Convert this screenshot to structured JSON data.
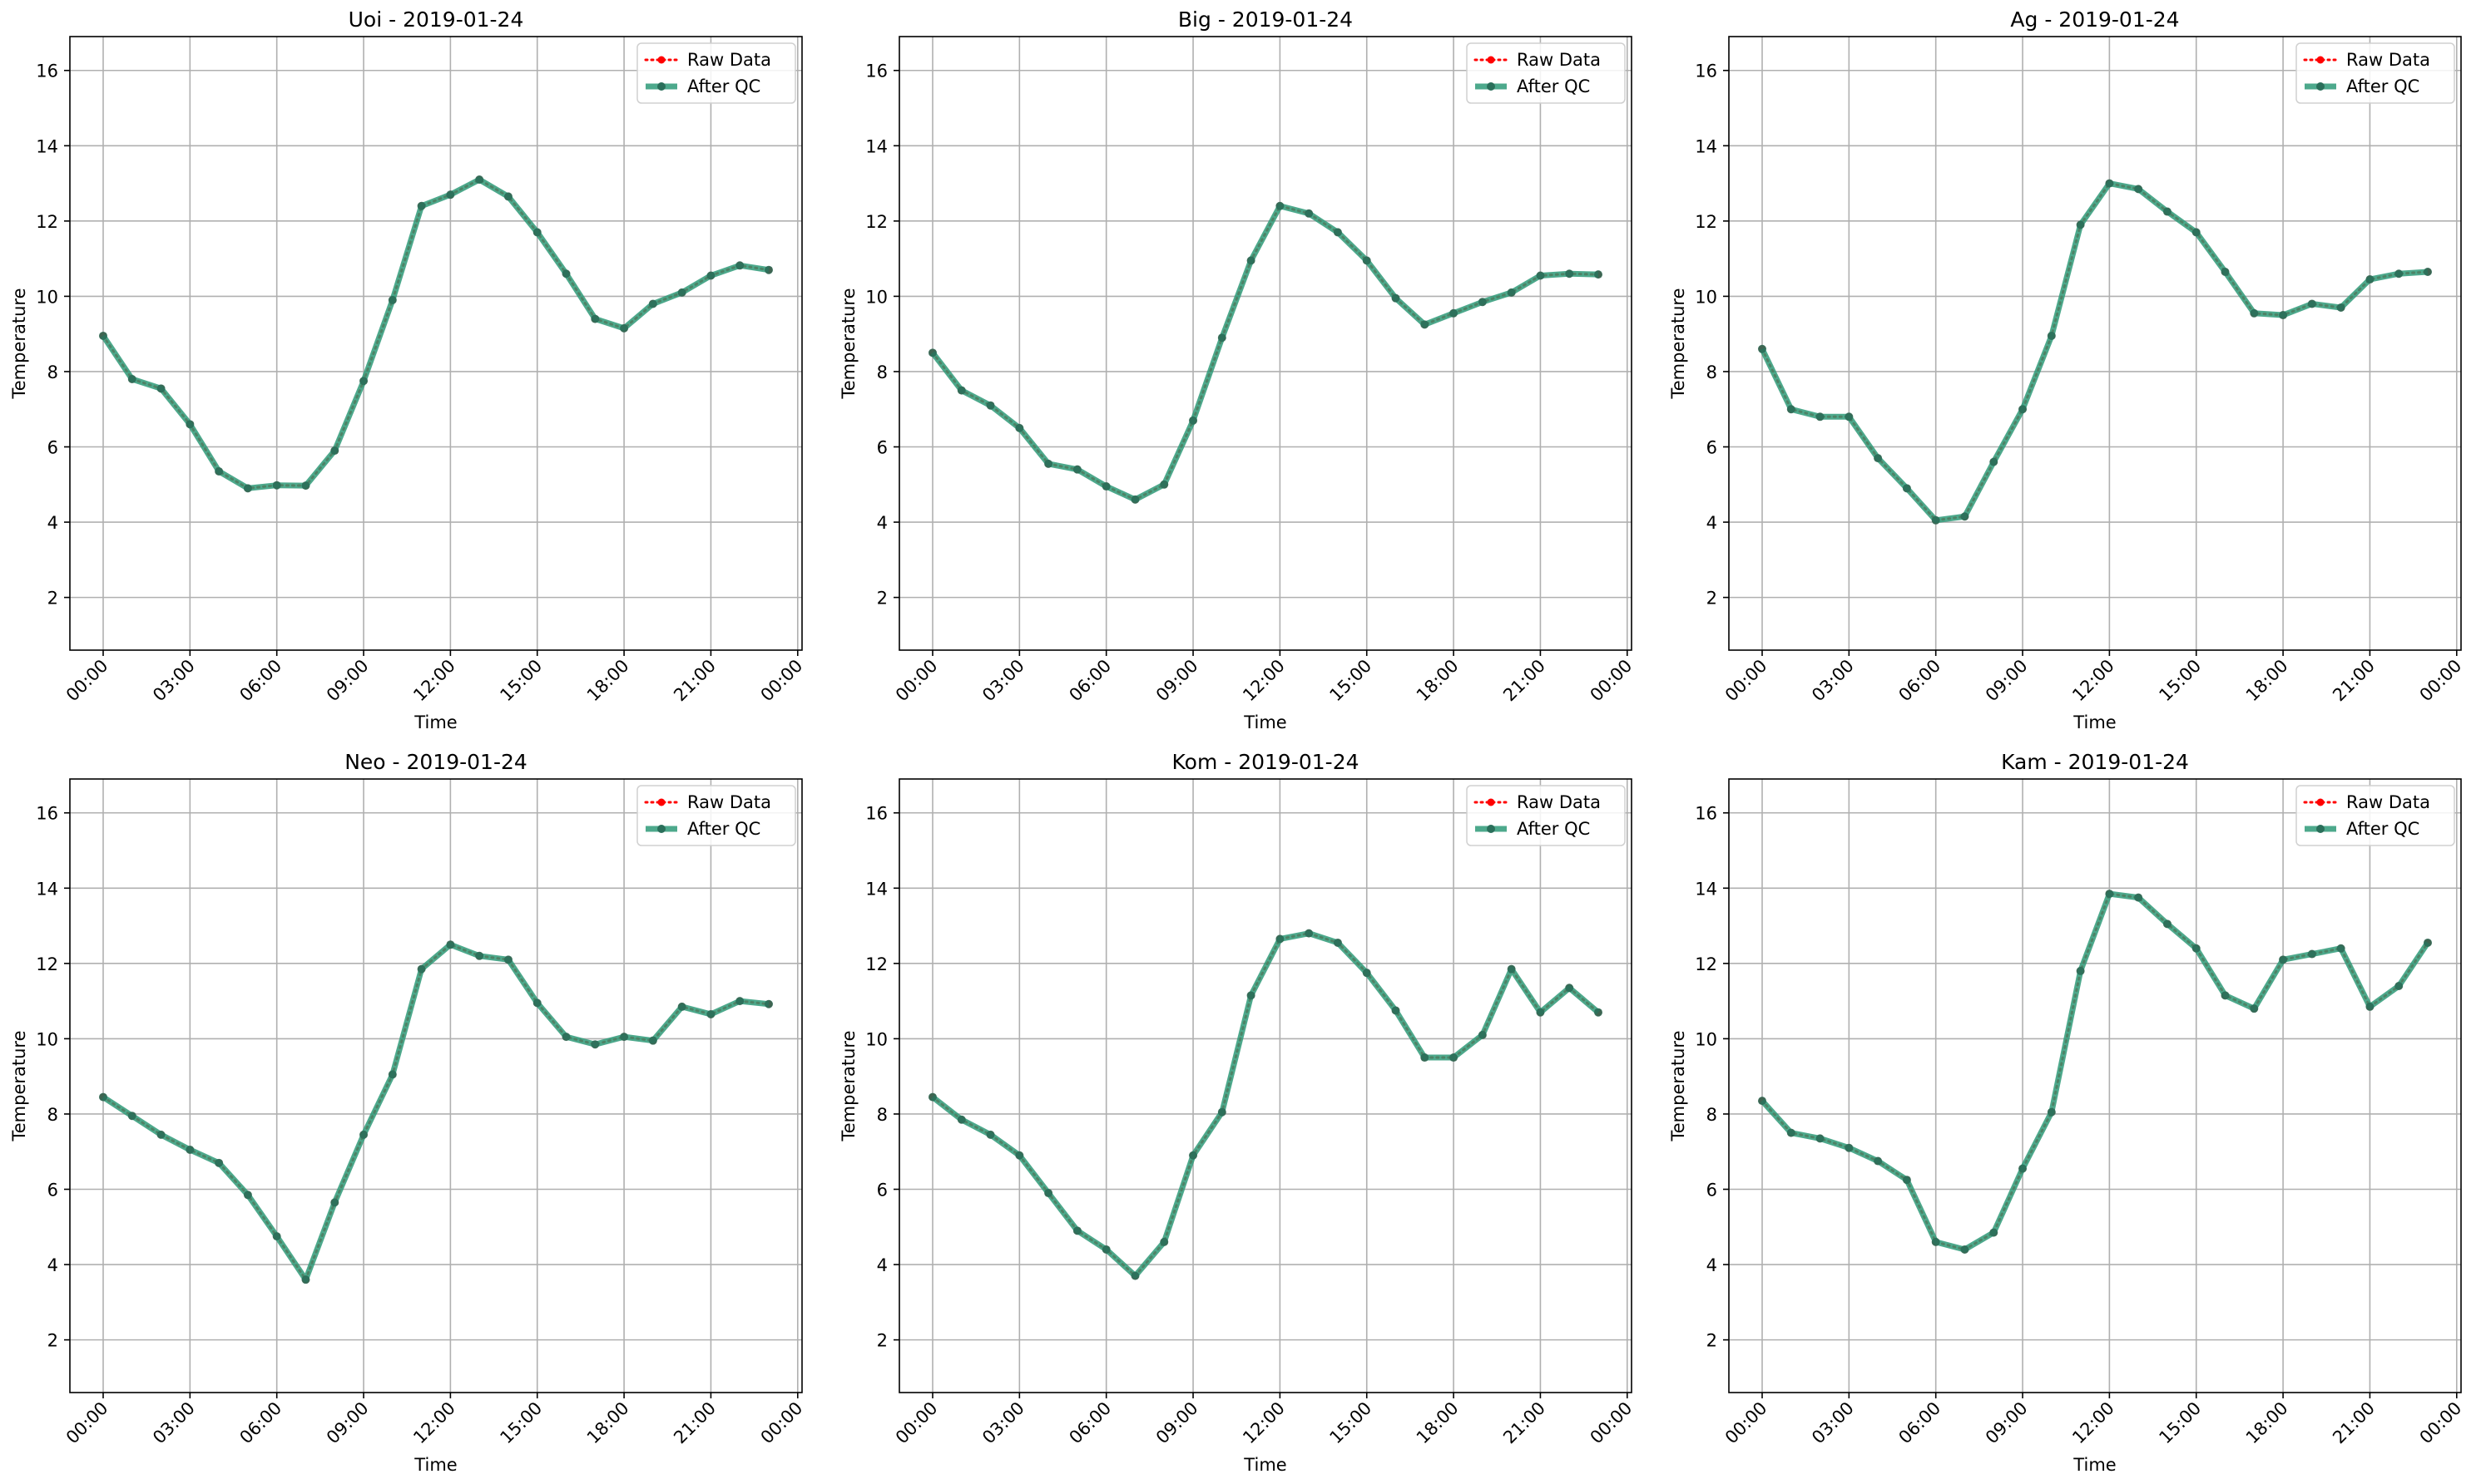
{
  "chart_data": [
    {
      "type": "line",
      "title": "Uoi - 2019-01-24",
      "xlabel": "Time",
      "ylabel": "Temperature",
      "x": [
        "00:00",
        "01:00",
        "02:00",
        "03:00",
        "04:00",
        "05:00",
        "06:00",
        "07:00",
        "08:00",
        "09:00",
        "10:00",
        "11:00",
        "12:00",
        "13:00",
        "14:00",
        "15:00",
        "16:00",
        "17:00",
        "18:00",
        "19:00",
        "20:00",
        "21:00",
        "22:00",
        "23:00"
      ],
      "x_ticks": [
        "00:00",
        "03:00",
        "06:00",
        "09:00",
        "12:00",
        "15:00",
        "18:00",
        "21:00",
        "00:00"
      ],
      "y_ticks": [
        2,
        4,
        6,
        8,
        10,
        12,
        14,
        16
      ],
      "ylim": [
        0.6,
        16.9
      ],
      "grid": true,
      "legend": "top-right",
      "series": [
        {
          "name": "Raw Data",
          "color": "#ff0000",
          "values": [
            8.95,
            7.8,
            7.55,
            6.6,
            5.35,
            4.9,
            4.98,
            4.97,
            5.9,
            7.75,
            9.9,
            12.4,
            12.7,
            13.1,
            12.65,
            11.7,
            10.6,
            9.4,
            9.15,
            9.8,
            10.1,
            10.55,
            10.82,
            10.7
          ]
        },
        {
          "name": "After QC",
          "color": "#2e9a78",
          "values": [
            8.95,
            7.8,
            7.55,
            6.6,
            5.35,
            4.9,
            4.98,
            4.97,
            5.9,
            7.75,
            9.9,
            12.4,
            12.7,
            13.1,
            12.65,
            11.7,
            10.6,
            9.4,
            9.15,
            9.8,
            10.1,
            10.55,
            10.82,
            10.7
          ]
        }
      ]
    },
    {
      "type": "line",
      "title": "Big - 2019-01-24",
      "xlabel": "Time",
      "ylabel": "Temperature",
      "x": [
        "00:00",
        "01:00",
        "02:00",
        "03:00",
        "04:00",
        "05:00",
        "06:00",
        "07:00",
        "08:00",
        "09:00",
        "10:00",
        "11:00",
        "12:00",
        "13:00",
        "14:00",
        "15:00",
        "16:00",
        "17:00",
        "18:00",
        "19:00",
        "20:00",
        "21:00",
        "22:00",
        "23:00"
      ],
      "x_ticks": [
        "00:00",
        "03:00",
        "06:00",
        "09:00",
        "12:00",
        "15:00",
        "18:00",
        "21:00",
        "00:00"
      ],
      "y_ticks": [
        2,
        4,
        6,
        8,
        10,
        12,
        14,
        16
      ],
      "ylim": [
        0.6,
        16.9
      ],
      "grid": true,
      "legend": "top-right",
      "series": [
        {
          "name": "Raw Data",
          "color": "#ff0000",
          "values": [
            8.5,
            7.5,
            7.1,
            6.5,
            5.55,
            5.4,
            4.95,
            4.6,
            5.0,
            6.7,
            8.9,
            10.95,
            12.4,
            12.2,
            11.7,
            10.95,
            9.95,
            9.25,
            9.55,
            9.85,
            10.1,
            10.55,
            10.6,
            10.58
          ]
        },
        {
          "name": "After QC",
          "color": "#2e9a78",
          "values": [
            8.5,
            7.5,
            7.1,
            6.5,
            5.55,
            5.4,
            4.95,
            4.6,
            5.0,
            6.7,
            8.9,
            10.95,
            12.4,
            12.2,
            11.7,
            10.95,
            9.95,
            9.25,
            9.55,
            9.85,
            10.1,
            10.55,
            10.6,
            10.58
          ]
        }
      ]
    },
    {
      "type": "line",
      "title": "Ag - 2019-01-24",
      "xlabel": "Time",
      "ylabel": "Temperature",
      "x": [
        "00:00",
        "01:00",
        "02:00",
        "03:00",
        "04:00",
        "05:00",
        "06:00",
        "07:00",
        "08:00",
        "09:00",
        "10:00",
        "11:00",
        "12:00",
        "13:00",
        "14:00",
        "15:00",
        "16:00",
        "17:00",
        "18:00",
        "19:00",
        "20:00",
        "21:00",
        "22:00",
        "23:00"
      ],
      "x_ticks": [
        "00:00",
        "03:00",
        "06:00",
        "09:00",
        "12:00",
        "15:00",
        "18:00",
        "21:00",
        "00:00"
      ],
      "y_ticks": [
        2,
        4,
        6,
        8,
        10,
        12,
        14,
        16
      ],
      "ylim": [
        0.6,
        16.9
      ],
      "grid": true,
      "legend": "top-right",
      "series": [
        {
          "name": "Raw Data",
          "color": "#ff0000",
          "values": [
            8.6,
            7.0,
            6.8,
            6.8,
            5.7,
            4.9,
            4.05,
            4.15,
            5.6,
            7.0,
            8.95,
            11.9,
            13.0,
            12.85,
            12.25,
            11.7,
            10.65,
            9.55,
            9.5,
            9.8,
            9.7,
            10.45,
            10.6,
            10.65
          ]
        },
        {
          "name": "After QC",
          "color": "#2e9a78",
          "values": [
            8.6,
            7.0,
            6.8,
            6.8,
            5.7,
            4.9,
            4.05,
            4.15,
            5.6,
            7.0,
            8.95,
            11.9,
            13.0,
            12.85,
            12.25,
            11.7,
            10.65,
            9.55,
            9.5,
            9.8,
            9.7,
            10.45,
            10.6,
            10.65
          ]
        }
      ]
    },
    {
      "type": "line",
      "title": "Neo - 2019-01-24",
      "xlabel": "Time",
      "ylabel": "Temperature",
      "x": [
        "00:00",
        "01:00",
        "02:00",
        "03:00",
        "04:00",
        "05:00",
        "06:00",
        "07:00",
        "08:00",
        "09:00",
        "10:00",
        "11:00",
        "12:00",
        "13:00",
        "14:00",
        "15:00",
        "16:00",
        "17:00",
        "18:00",
        "19:00",
        "20:00",
        "21:00",
        "22:00",
        "23:00"
      ],
      "x_ticks": [
        "00:00",
        "03:00",
        "06:00",
        "09:00",
        "12:00",
        "15:00",
        "18:00",
        "21:00",
        "00:00"
      ],
      "y_ticks": [
        2,
        4,
        6,
        8,
        10,
        12,
        14,
        16
      ],
      "ylim": [
        0.6,
        16.9
      ],
      "grid": true,
      "legend": "top-right",
      "series": [
        {
          "name": "Raw Data",
          "color": "#ff0000",
          "values": [
            8.45,
            7.95,
            7.45,
            7.05,
            6.7,
            5.85,
            4.75,
            3.6,
            5.65,
            7.45,
            9.05,
            11.85,
            12.5,
            12.2,
            12.1,
            10.95,
            10.05,
            9.85,
            10.05,
            9.95,
            10.85,
            10.65,
            11.0,
            10.92
          ]
        },
        {
          "name": "After QC",
          "color": "#2e9a78",
          "values": [
            8.45,
            7.95,
            7.45,
            7.05,
            6.7,
            5.85,
            4.75,
            3.6,
            5.65,
            7.45,
            9.05,
            11.85,
            12.5,
            12.2,
            12.1,
            10.95,
            10.05,
            9.85,
            10.05,
            9.95,
            10.85,
            10.65,
            11.0,
            10.92
          ]
        }
      ]
    },
    {
      "type": "line",
      "title": "Kom - 2019-01-24",
      "xlabel": "Time",
      "ylabel": "Temperature",
      "x": [
        "00:00",
        "01:00",
        "02:00",
        "03:00",
        "04:00",
        "05:00",
        "06:00",
        "07:00",
        "08:00",
        "09:00",
        "10:00",
        "11:00",
        "12:00",
        "13:00",
        "14:00",
        "15:00",
        "16:00",
        "17:00",
        "18:00",
        "19:00",
        "20:00",
        "21:00",
        "22:00",
        "23:00"
      ],
      "x_ticks": [
        "00:00",
        "03:00",
        "06:00",
        "09:00",
        "12:00",
        "15:00",
        "18:00",
        "21:00",
        "00:00"
      ],
      "y_ticks": [
        2,
        4,
        6,
        8,
        10,
        12,
        14,
        16
      ],
      "ylim": [
        0.6,
        16.9
      ],
      "grid": true,
      "legend": "top-right",
      "series": [
        {
          "name": "Raw Data",
          "color": "#ff0000",
          "values": [
            8.45,
            7.85,
            7.45,
            6.9,
            5.9,
            4.9,
            4.4,
            3.7,
            4.6,
            6.9,
            8.05,
            11.15,
            12.65,
            12.8,
            12.55,
            11.75,
            10.75,
            9.5,
            9.5,
            10.1,
            11.85,
            10.7,
            11.35,
            10.7
          ]
        },
        {
          "name": "After QC",
          "color": "#2e9a78",
          "values": [
            8.45,
            7.85,
            7.45,
            6.9,
            5.9,
            4.9,
            4.4,
            3.7,
            4.6,
            6.9,
            8.05,
            11.15,
            12.65,
            12.8,
            12.55,
            11.75,
            10.75,
            9.5,
            9.5,
            10.1,
            11.85,
            10.7,
            11.35,
            10.7
          ]
        }
      ]
    },
    {
      "type": "line",
      "title": "Kam - 2019-01-24",
      "xlabel": "Time",
      "ylabel": "Temperature",
      "x": [
        "00:00",
        "01:00",
        "02:00",
        "03:00",
        "04:00",
        "05:00",
        "06:00",
        "07:00",
        "08:00",
        "09:00",
        "10:00",
        "11:00",
        "12:00",
        "13:00",
        "14:00",
        "15:00",
        "16:00",
        "17:00",
        "18:00",
        "19:00",
        "20:00",
        "21:00",
        "22:00",
        "23:00"
      ],
      "x_ticks": [
        "00:00",
        "03:00",
        "06:00",
        "09:00",
        "12:00",
        "15:00",
        "18:00",
        "21:00",
        "00:00"
      ],
      "y_ticks": [
        2,
        4,
        6,
        8,
        10,
        12,
        14,
        16
      ],
      "ylim": [
        0.6,
        16.9
      ],
      "grid": true,
      "legend": "top-right",
      "series": [
        {
          "name": "Raw Data",
          "color": "#ff0000",
          "values": [
            8.35,
            7.5,
            7.35,
            7.1,
            6.75,
            6.25,
            4.6,
            4.4,
            4.85,
            6.55,
            8.05,
            11.8,
            13.85,
            13.75,
            13.05,
            12.4,
            11.15,
            10.8,
            12.1,
            12.25,
            12.4,
            10.85,
            11.4,
            12.55
          ]
        },
        {
          "name": "After QC",
          "color": "#2e9a78",
          "values": [
            8.35,
            7.5,
            7.35,
            7.1,
            6.75,
            6.25,
            4.6,
            4.4,
            4.85,
            6.55,
            8.05,
            11.8,
            13.85,
            13.75,
            13.05,
            12.4,
            11.15,
            10.8,
            12.1,
            12.25,
            12.4,
            10.85,
            11.4,
            12.55
          ]
        }
      ]
    }
  ]
}
